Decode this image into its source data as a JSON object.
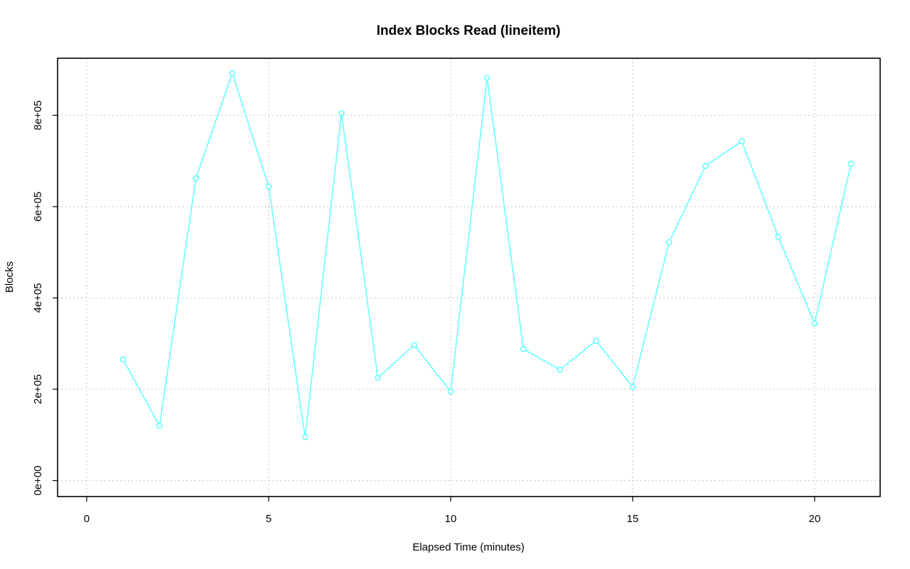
{
  "chart_data": {
    "type": "line",
    "title": "Index Blocks Read (lineitem)",
    "xlabel": "Elapsed Time (minutes)",
    "ylabel": "Blocks",
    "xlim": [
      -0.8,
      21.8
    ],
    "ylim": [
      -35000,
      925000
    ],
    "x_ticks": [
      0,
      5,
      10,
      15,
      20
    ],
    "x_tick_labels": [
      "0",
      "5",
      "10",
      "15",
      "20"
    ],
    "y_ticks": [
      0,
      200000,
      400000,
      600000,
      800000
    ],
    "y_tick_labels": [
      "0e+00",
      "2e+05",
      "4e+05",
      "6e+05",
      "8e+05"
    ],
    "grid": true,
    "series": [
      {
        "color": "#66ffff",
        "x": [
          1,
          2,
          3,
          4,
          5,
          6,
          7,
          8,
          9,
          10,
          11,
          12,
          13,
          14,
          15,
          16,
          17,
          18,
          19,
          20,
          21
        ],
        "values": [
          265000,
          120000,
          662000,
          892000,
          644000,
          95000,
          805000,
          225000,
          297000,
          195000,
          882000,
          288000,
          243000,
          306000,
          205000,
          522000,
          689000,
          743000,
          534000,
          344000,
          694000
        ]
      }
    ]
  }
}
